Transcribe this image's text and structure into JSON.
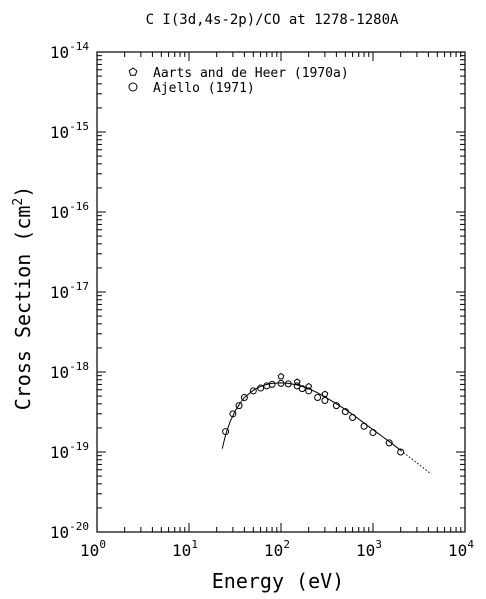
{
  "chart_data": {
    "type": "scatter",
    "title": "C I(3d,4s-2p)/CO at 1278-1280A",
    "xlabel": "Energy (eV)",
    "ylabel": "Cross Section (cm",
    "ylabel_sup": "2",
    "ylabel_close": ")",
    "x_scale": "log",
    "y_scale": "log",
    "xlim": [
      1,
      10000
    ],
    "ylim": [
      1e-20,
      1e-14
    ],
    "x_ticks": [
      {
        "value": 1,
        "base": "10",
        "exp": "0"
      },
      {
        "value": 10,
        "base": "10",
        "exp": "1"
      },
      {
        "value": 100,
        "base": "10",
        "exp": "2"
      },
      {
        "value": 1000,
        "base": "10",
        "exp": "3"
      },
      {
        "value": 10000,
        "base": "10",
        "exp": "4"
      }
    ],
    "y_ticks": [
      {
        "value": 1e-20,
        "base": "10",
        "exp": "-20"
      },
      {
        "value": 1e-19,
        "base": "10",
        "exp": "-19"
      },
      {
        "value": 1e-18,
        "base": "10",
        "exp": "-18"
      },
      {
        "value": 1e-17,
        "base": "10",
        "exp": "-17"
      },
      {
        "value": 1e-16,
        "base": "10",
        "exp": "-16"
      },
      {
        "value": 1e-15,
        "base": "10",
        "exp": "-15"
      },
      {
        "value": 1e-14,
        "base": "10",
        "exp": "-14"
      }
    ],
    "legend": "top-left",
    "series": [
      {
        "name": "Aarts and de Heer (1970a)",
        "marker": "pentagon",
        "points": [
          [
            100,
            8.8e-19
          ],
          [
            150,
            7.5e-19
          ],
          [
            200,
            6.6e-19
          ],
          [
            300,
            5.3e-19
          ]
        ]
      },
      {
        "name": "Ajello (1971)",
        "marker": "circle",
        "points": [
          [
            25,
            1.8e-19
          ],
          [
            30,
            3e-19
          ],
          [
            35,
            3.8e-19
          ],
          [
            40,
            4.8e-19
          ],
          [
            50,
            5.8e-19
          ],
          [
            60,
            6.3e-19
          ],
          [
            70,
            6.7e-19
          ],
          [
            80,
            7e-19
          ],
          [
            100,
            7.2e-19
          ],
          [
            120,
            7.1e-19
          ],
          [
            150,
            6.7e-19
          ],
          [
            170,
            6.2e-19
          ],
          [
            200,
            5.8e-19
          ],
          [
            250,
            4.8e-19
          ],
          [
            300,
            4.4e-19
          ],
          [
            400,
            3.8e-19
          ],
          [
            500,
            3.2e-19
          ],
          [
            600,
            2.7e-19
          ],
          [
            800,
            2.1e-19
          ],
          [
            1000,
            1.75e-19
          ],
          [
            1500,
            1.3e-19
          ],
          [
            2000,
            1e-19
          ]
        ]
      },
      {
        "name": "",
        "style": "solid-line",
        "points": [
          [
            23,
            1.1e-19
          ],
          [
            25,
            1.65e-19
          ],
          [
            28,
            2.4e-19
          ],
          [
            32,
            3.3e-19
          ],
          [
            36,
            4.1e-19
          ],
          [
            40,
            4.8e-19
          ],
          [
            50,
            5.9e-19
          ],
          [
            60,
            6.6e-19
          ],
          [
            70,
            7e-19
          ],
          [
            80,
            7.2e-19
          ],
          [
            100,
            7.3e-19
          ],
          [
            120,
            7.2e-19
          ],
          [
            150,
            6.9e-19
          ],
          [
            200,
            6.2e-19
          ],
          [
            250,
            5.5e-19
          ],
          [
            300,
            4.9e-19
          ],
          [
            400,
            4e-19
          ],
          [
            500,
            3.4e-19
          ],
          [
            600,
            2.95e-19
          ],
          [
            800,
            2.3e-19
          ],
          [
            1000,
            1.9e-19
          ],
          [
            1500,
            1.35e-19
          ],
          [
            2000,
            1.05e-19
          ]
        ]
      },
      {
        "name": "",
        "style": "dotted-line",
        "points": [
          [
            2000,
            1.05e-19
          ],
          [
            3000,
            7.3e-20
          ],
          [
            4300,
            5.3e-20
          ]
        ]
      }
    ]
  }
}
